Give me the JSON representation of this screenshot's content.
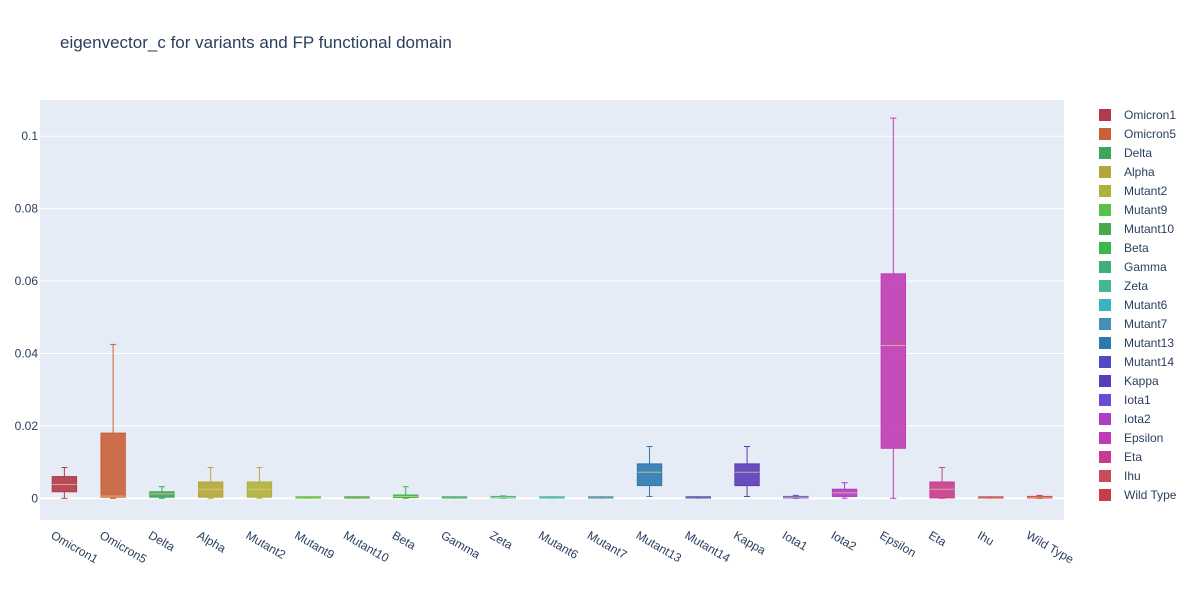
{
  "chart_data": {
    "type": "box",
    "title": "eigenvector_c for variants and FP functional domain",
    "xlabel": "",
    "ylabel": "",
    "ylim": [
      -0.006,
      0.11
    ],
    "yticks": [
      0,
      0.02,
      0.04,
      0.06,
      0.08,
      0.1
    ],
    "ytick_labels": [
      "0",
      "0.02",
      "0.04",
      "0.06",
      "0.08",
      "0.1"
    ],
    "grid": true,
    "legend_position": "right",
    "series": [
      {
        "name": "Omicron1",
        "color": "#b33a4a",
        "min": 0.0,
        "q1": 0.0018,
        "median": 0.0038,
        "q3": 0.006,
        "max": 0.0085
      },
      {
        "name": "Omicron5",
        "color": "#c9603a",
        "min": 0.0,
        "q1": 0.0003,
        "median": 0.0006,
        "q3": 0.018,
        "max": 0.0425
      },
      {
        "name": "Delta",
        "color": "#3ea55a",
        "min": 0.0,
        "q1": 0.0003,
        "median": 0.0012,
        "q3": 0.0018,
        "max": 0.0032
      },
      {
        "name": "Alpha",
        "color": "#b5a63a",
        "min": 0.0,
        "q1": 0.0003,
        "median": 0.0025,
        "q3": 0.0045,
        "max": 0.0085
      },
      {
        "name": "Mutant2",
        "color": "#b0b03a",
        "min": 0.0,
        "q1": 0.0003,
        "median": 0.0025,
        "q3": 0.0045,
        "max": 0.0085
      },
      {
        "name": "Mutant9",
        "color": "#58c04c",
        "min": 0.0,
        "q1": 0.0,
        "median": 0.0,
        "q3": 0.0001,
        "max": 0.0002
      },
      {
        "name": "Mutant10",
        "color": "#4aa84c",
        "min": 0.0,
        "q1": 0.0,
        "median": 0.0,
        "q3": 0.0001,
        "max": 0.0002
      },
      {
        "name": "Beta",
        "color": "#3cb84a",
        "min": 0.0,
        "q1": 0.0002,
        "median": 0.0005,
        "q3": 0.0009,
        "max": 0.0032
      },
      {
        "name": "Gamma",
        "color": "#3fb07a",
        "min": 0.0,
        "q1": 0.0,
        "median": 0.0,
        "q3": 0.0001,
        "max": 0.0002
      },
      {
        "name": "Zeta",
        "color": "#44b890",
        "min": 0.0,
        "q1": 0.0001,
        "median": 0.0002,
        "q3": 0.0004,
        "max": 0.0007
      },
      {
        "name": "Mutant6",
        "color": "#3ab5c0",
        "min": 0.0,
        "q1": 0.0,
        "median": 0.0,
        "q3": 0.0001,
        "max": 0.0002
      },
      {
        "name": "Mutant7",
        "color": "#4690b8",
        "min": 0.0,
        "q1": 0.0,
        "median": 0.0,
        "q3": 0.0001,
        "max": 0.0002
      },
      {
        "name": "Mutant13",
        "color": "#2d7ab0",
        "min": 0.0005,
        "q1": 0.0035,
        "median": 0.0072,
        "q3": 0.0095,
        "max": 0.0143
      },
      {
        "name": "Mutant14",
        "color": "#4d4cc4",
        "min": 0.0,
        "q1": 0.0,
        "median": 0.0,
        "q3": 0.0001,
        "max": 0.0002
      },
      {
        "name": "Kappa",
        "color": "#5a3cb8",
        "min": 0.0005,
        "q1": 0.0035,
        "median": 0.0072,
        "q3": 0.0095,
        "max": 0.0143
      },
      {
        "name": "Iota1",
        "color": "#6a4cd0",
        "min": 0.0,
        "q1": 0.0001,
        "median": 0.0003,
        "q3": 0.0005,
        "max": 0.0008
      },
      {
        "name": "Iota2",
        "color": "#b03cc4",
        "min": 0.0,
        "q1": 0.0005,
        "median": 0.0015,
        "q3": 0.0025,
        "max": 0.0043
      },
      {
        "name": "Epsilon",
        "color": "#c03cb4",
        "min": 0.0,
        "q1": 0.0138,
        "median": 0.0422,
        "q3": 0.062,
        "max": 0.105
      },
      {
        "name": "Eta",
        "color": "#c83c90",
        "min": 0.0,
        "q1": 0.0001,
        "median": 0.0025,
        "q3": 0.0045,
        "max": 0.0085
      },
      {
        "name": "Ihu",
        "color": "#c84c5c",
        "min": 0.0,
        "q1": 0.0,
        "median": 0.0,
        "q3": 0.0001,
        "max": 0.0002
      },
      {
        "name": "Wild Type",
        "color": "#c83c48",
        "min": 0.0,
        "q1": 0.0001,
        "median": 0.0003,
        "q3": 0.0005,
        "max": 0.0008
      }
    ],
    "colors": {
      "plot_background": "#e5ecf6",
      "grid": "#ffffff",
      "text": "#2a3f5f"
    }
  }
}
